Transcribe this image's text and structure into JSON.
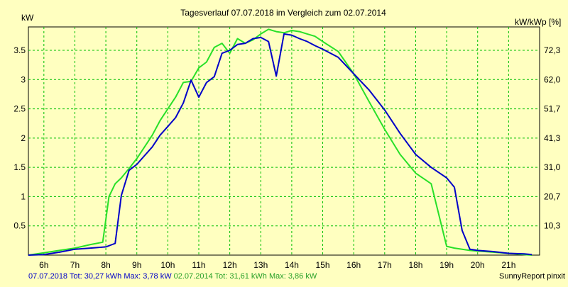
{
  "chart_data": {
    "type": "line",
    "title": "Tagesverlauf 07.07.2018 im Vergleich zum 02.07.2014",
    "ylabel": "kW",
    "y2label": "kW/kWp [%]",
    "xlim": [
      5.5,
      22.0
    ],
    "ylim": [
      0,
      3.9
    ],
    "x_ticks": [
      6,
      7,
      8,
      9,
      10,
      11,
      12,
      13,
      14,
      15,
      16,
      17,
      18,
      19,
      20,
      21
    ],
    "x_tick_labels": [
      "6h",
      "7h",
      "8h",
      "9h",
      "10h",
      "11h",
      "12h",
      "13h",
      "14h",
      "15h",
      "16h",
      "17h",
      "18h",
      "19h",
      "20h",
      "21h"
    ],
    "y_ticks": [
      0.5,
      1,
      1.5,
      2,
      2.5,
      3,
      3.5
    ],
    "y_tick_labels": [
      "0.5",
      "1",
      "1.5",
      "2",
      "2.5",
      "3",
      "3.5"
    ],
    "y2_tick_labels": [
      "10,3",
      "20,7",
      "31,0",
      "41,3",
      "51,7",
      "62,0",
      "72,3"
    ],
    "grid": true,
    "colors": {
      "background": "#ffffc0",
      "grid": "#00c000",
      "series_2018": "#0000c8",
      "series_2014": "#28e028"
    },
    "series": [
      {
        "name": "07.07.2018",
        "x": [
          5.5,
          6.0,
          6.5,
          7.0,
          7.5,
          8.0,
          8.3,
          8.5,
          8.75,
          9.0,
          9.25,
          9.5,
          9.75,
          10.0,
          10.25,
          10.5,
          10.75,
          11.0,
          11.25,
          11.5,
          11.75,
          12.0,
          12.25,
          12.5,
          12.75,
          13.0,
          13.25,
          13.5,
          13.75,
          14.0,
          14.25,
          14.5,
          14.75,
          15.0,
          15.5,
          16.0,
          16.5,
          17.0,
          17.5,
          18.0,
          18.5,
          19.0,
          19.25,
          19.5,
          19.75,
          20.0,
          20.5,
          21.0,
          21.5,
          21.75
        ],
        "values": [
          0.0,
          0.01,
          0.05,
          0.1,
          0.12,
          0.14,
          0.2,
          1.02,
          1.45,
          1.55,
          1.7,
          1.85,
          2.05,
          2.2,
          2.35,
          2.6,
          2.99,
          2.7,
          2.95,
          3.05,
          3.45,
          3.5,
          3.6,
          3.62,
          3.7,
          3.72,
          3.65,
          3.06,
          3.78,
          3.76,
          3.7,
          3.65,
          3.58,
          3.52,
          3.38,
          3.1,
          2.82,
          2.48,
          2.08,
          1.72,
          1.5,
          1.32,
          1.16,
          0.42,
          0.1,
          0.08,
          0.06,
          0.03,
          0.02,
          0.01
        ]
      },
      {
        "name": "02.07.2014",
        "x": [
          5.5,
          6.0,
          6.5,
          7.0,
          7.5,
          7.9,
          8.1,
          8.3,
          8.5,
          8.75,
          9.0,
          9.25,
          9.5,
          9.75,
          10.0,
          10.25,
          10.5,
          10.75,
          11.0,
          11.25,
          11.5,
          11.75,
          12.0,
          12.25,
          12.5,
          12.75,
          13.0,
          13.25,
          13.5,
          13.75,
          14.0,
          14.25,
          14.5,
          14.75,
          15.0,
          15.5,
          16.0,
          16.5,
          17.0,
          17.5,
          18.0,
          18.5,
          19.0,
          19.25,
          19.5,
          19.75,
          20.0,
          20.5,
          21.0,
          21.5,
          21.75
        ],
        "values": [
          0.0,
          0.04,
          0.08,
          0.12,
          0.18,
          0.22,
          1.0,
          1.22,
          1.32,
          1.48,
          1.65,
          1.85,
          2.05,
          2.3,
          2.5,
          2.7,
          2.95,
          2.97,
          3.2,
          3.3,
          3.55,
          3.62,
          3.45,
          3.7,
          3.62,
          3.68,
          3.78,
          3.86,
          3.82,
          3.8,
          3.84,
          3.82,
          3.78,
          3.74,
          3.65,
          3.48,
          3.1,
          2.62,
          2.15,
          1.72,
          1.4,
          1.22,
          0.15,
          0.12,
          0.1,
          0.08,
          0.07,
          0.05,
          0.03,
          0.01,
          0.0
        ]
      }
    ]
  },
  "footer": {
    "left_2018": "07.07.2018 Tot: 30,27 kWh Max: 3,78 kW",
    "left_2014": "02.07.2014 Tot: 31,61 kWh Max: 3,86 kW",
    "right": "SunnyReport pinxit"
  }
}
